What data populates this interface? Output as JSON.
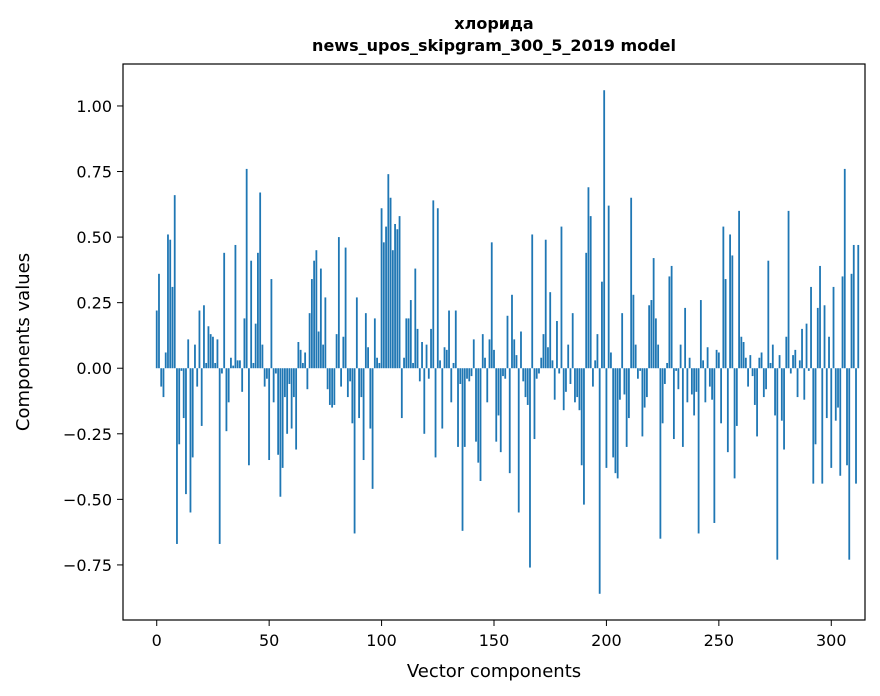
{
  "chart_data": {
    "type": "bar",
    "title_line1": "хлорида",
    "title_line2": "news_upos_skipgram_300_5_2019 model",
    "xlabel": "Vector components",
    "ylabel": "Components values",
    "xlim": [
      -15,
      315
    ],
    "ylim": [
      -0.96,
      1.16
    ],
    "xticks": [
      0,
      50,
      100,
      150,
      200,
      250,
      300
    ],
    "xtick_labels": [
      "0",
      "50",
      "100",
      "150",
      "200",
      "250",
      "300"
    ],
    "yticks": [
      1.0,
      0.75,
      0.5,
      0.25,
      0.0,
      -0.25,
      -0.5,
      -0.75
    ],
    "ytick_labels": [
      "1.00",
      "0.75",
      "0.50",
      "0.25",
      "0.00",
      "−0.25",
      "−0.50",
      "−0.75"
    ],
    "bar_color": "#1f77b4",
    "values": [
      0.22,
      0.36,
      -0.07,
      -0.11,
      0.06,
      0.51,
      0.49,
      0.31,
      0.66,
      -0.67,
      -0.29,
      -0.01,
      -0.19,
      -0.48,
      0.11,
      -0.55,
      -0.34,
      0.09,
      -0.07,
      0.22,
      -0.22,
      0.24,
      0.02,
      0.16,
      0.13,
      0.12,
      0.02,
      0.11,
      -0.67,
      -0.02,
      0.44,
      -0.24,
      -0.13,
      0.04,
      0.01,
      0.47,
      0.03,
      0.03,
      -0.09,
      0.19,
      0.76,
      -0.37,
      0.41,
      0.02,
      0.17,
      0.44,
      0.67,
      0.09,
      -0.07,
      -0.04,
      -0.35,
      0.34,
      -0.13,
      -0.02,
      -0.33,
      -0.49,
      -0.38,
      -0.11,
      -0.25,
      -0.06,
      -0.23,
      -0.11,
      -0.31,
      0.1,
      0.07,
      0.02,
      0.06,
      -0.08,
      0.21,
      0.34,
      0.41,
      0.45,
      0.14,
      0.38,
      0.09,
      0.27,
      -0.08,
      -0.14,
      -0.15,
      -0.14,
      0.13,
      0.5,
      -0.07,
      0.12,
      0.46,
      -0.11,
      -0.05,
      -0.21,
      -0.63,
      0.27,
      -0.19,
      -0.11,
      -0.35,
      0.21,
      0.08,
      -0.23,
      -0.46,
      0.19,
      0.04,
      0.02,
      0.61,
      0.48,
      0.54,
      0.74,
      0.65,
      0.45,
      0.55,
      0.53,
      0.58,
      -0.19,
      0.04,
      0.19,
      0.19,
      0.26,
      0.02,
      0.38,
      0.15,
      -0.05,
      0.1,
      -0.25,
      0.09,
      -0.04,
      0.15,
      0.64,
      -0.34,
      0.61,
      0.03,
      -0.23,
      0.08,
      0.07,
      0.22,
      -0.13,
      0.02,
      0.22,
      -0.3,
      -0.06,
      -0.62,
      -0.3,
      -0.04,
      -0.05,
      -0.03,
      0.11,
      -0.28,
      -0.36,
      -0.43,
      0.13,
      0.04,
      -0.13,
      0.11,
      0.48,
      0.07,
      -0.28,
      -0.18,
      -0.32,
      -0.03,
      -0.04,
      0.2,
      -0.4,
      0.28,
      0.11,
      0.05,
      -0.55,
      0.14,
      -0.05,
      -0.11,
      -0.14,
      -0.76,
      0.51,
      -0.27,
      -0.04,
      -0.02,
      0.04,
      0.13,
      0.49,
      0.08,
      0.29,
      0.03,
      -0.12,
      0.18,
      -0.02,
      0.54,
      -0.16,
      -0.09,
      0.09,
      -0.06,
      0.21,
      -0.13,
      -0.11,
      -0.16,
      -0.37,
      -0.52,
      0.44,
      0.69,
      0.58,
      -0.07,
      0.03,
      0.13,
      -0.86,
      0.33,
      1.06,
      -0.38,
      0.62,
      0.06,
      -0.34,
      -0.4,
      -0.42,
      -0.12,
      0.21,
      -0.1,
      -0.3,
      -0.19,
      0.65,
      0.28,
      0.09,
      -0.04,
      -0.01,
      -0.26,
      -0.15,
      -0.11,
      0.24,
      0.26,
      0.42,
      0.19,
      0.09,
      -0.65,
      -0.21,
      -0.06,
      0.02,
      0.35,
      0.39,
      -0.27,
      -0.01,
      -0.08,
      0.09,
      -0.3,
      0.23,
      -0.13,
      0.04,
      -0.1,
      -0.18,
      -0.09,
      -0.63,
      0.26,
      0.03,
      -0.13,
      0.08,
      -0.07,
      -0.12,
      -0.59,
      0.07,
      0.06,
      -0.21,
      0.54,
      0.34,
      -0.32,
      0.51,
      0.43,
      -0.42,
      -0.22,
      0.6,
      0.12,
      0.1,
      0.04,
      -0.07,
      0.05,
      -0.03,
      -0.14,
      -0.26,
      0.04,
      0.06,
      -0.11,
      -0.08,
      0.41,
      0.02,
      0.09,
      -0.18,
      -0.73,
      0.05,
      -0.2,
      -0.31,
      0.12,
      0.6,
      -0.02,
      0.05,
      0.07,
      -0.11,
      0.03,
      0.15,
      -0.12,
      0.17,
      -0.01,
      0.31,
      -0.44,
      -0.29,
      0.23,
      0.39,
      -0.44,
      0.24,
      -0.19,
      0.12,
      -0.38,
      0.31,
      -0.2,
      -0.15,
      -0.41,
      0.35,
      0.76,
      -0.37,
      -0.73,
      0.36,
      0.47,
      -0.44,
      0.47
    ]
  }
}
